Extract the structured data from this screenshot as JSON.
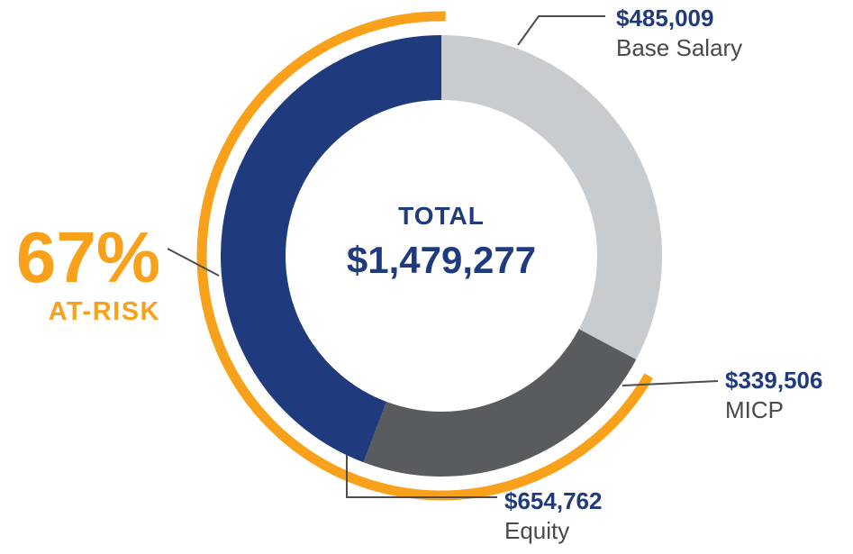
{
  "chart_data": {
    "type": "donut",
    "direction": "clockwise",
    "start_angle_deg": 0,
    "total": {
      "label": "TOTAL",
      "value": 1479277,
      "display_value": "$1,479,277"
    },
    "segments": [
      {
        "label": "Base Salary",
        "value": 485009,
        "display_value": "$485,009",
        "color": "#C9CCCF",
        "at_risk": false
      },
      {
        "label": "MICP",
        "value": 339506,
        "display_value": "$339,506",
        "color": "#595C5F",
        "at_risk": true
      },
      {
        "label": "Equity",
        "value": 654762,
        "display_value": "$654,762",
        "color": "#1F3A7D",
        "at_risk": true
      }
    ],
    "at_risk": {
      "percent": 67,
      "percent_label": "67%",
      "label": "AT-RISK",
      "color": "#F9A11B"
    },
    "legend_position": "callouts"
  },
  "colors": {
    "value_text": "#1F3A7D",
    "label_text": "#46494D",
    "callout_line": "#4D4D4D",
    "background": "#FFFFFF"
  }
}
